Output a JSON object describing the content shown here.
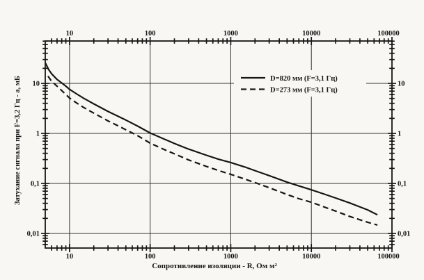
{
  "colors": {
    "background": "#f8f7f4",
    "ink": "#161616",
    "grid": "#34332f"
  },
  "chart_data": {
    "type": "line",
    "title": "",
    "xlabel": "Сопротивление изоляции - R, Ом м²",
    "ylabel": "Затухание сигнала при  F=3,2 Гц - а, мБ",
    "x_scale": "log",
    "y_scale": "log",
    "x_range": [
      5,
      100000
    ],
    "y_range": [
      0.0051,
      70.5
    ],
    "grid": true,
    "x_major_ticks": [
      10,
      100,
      1000,
      10000,
      100000
    ],
    "x_major_labels": [
      "10",
      "100",
      "1000",
      "10000",
      "100000"
    ],
    "y_major_ticks": [
      10,
      1,
      0.1,
      0.01
    ],
    "y_major_labels": [
      "10",
      "1",
      "0,1",
      "0,01"
    ],
    "tick_label_sides": [
      "top",
      "bottom",
      "left",
      "right"
    ],
    "legend_position": "inside-top-right",
    "series": [
      {
        "name": "D=820 мм (F=3,1 Гц)",
        "line_style": "solid",
        "points": [
          [
            5,
            26
          ],
          [
            5.5,
            19
          ],
          [
            6,
            15.5
          ],
          [
            7,
            12
          ],
          [
            8,
            10.2
          ],
          [
            9,
            8.8
          ],
          [
            10,
            7.6
          ],
          [
            12,
            6.3
          ],
          [
            15,
            5.05
          ],
          [
            20,
            3.9
          ],
          [
            30,
            2.75
          ],
          [
            40,
            2.2
          ],
          [
            50,
            1.85
          ],
          [
            70,
            1.4
          ],
          [
            100,
            1.02
          ],
          [
            150,
            0.77
          ],
          [
            200,
            0.63
          ],
          [
            300,
            0.485
          ],
          [
            500,
            0.365
          ],
          [
            700,
            0.305
          ],
          [
            1000,
            0.262
          ],
          [
            1500,
            0.213
          ],
          [
            2000,
            0.18
          ],
          [
            3000,
            0.143
          ],
          [
            5000,
            0.106
          ],
          [
            7000,
            0.089
          ],
          [
            10000,
            0.0745
          ],
          [
            15000,
            0.06
          ],
          [
            20000,
            0.051
          ],
          [
            30000,
            0.0405
          ],
          [
            50000,
            0.0295
          ],
          [
            66000,
            0.0235
          ]
        ]
      },
      {
        "name": "D=273 мм (F=3,1 Гц)",
        "line_style": "dashed",
        "points": [
          [
            5.4,
            14
          ],
          [
            6,
            11
          ],
          [
            7,
            8.8
          ],
          [
            8,
            7.2
          ],
          [
            9,
            6.0
          ],
          [
            10,
            5.1
          ],
          [
            12,
            4.15
          ],
          [
            15,
            3.3
          ],
          [
            20,
            2.55
          ],
          [
            30,
            1.78
          ],
          [
            40,
            1.42
          ],
          [
            50,
            1.18
          ],
          [
            60,
            1.02
          ],
          [
            70,
            0.9
          ],
          [
            100,
            0.64
          ],
          [
            150,
            0.475
          ],
          [
            200,
            0.39
          ],
          [
            300,
            0.295
          ],
          [
            500,
            0.218
          ],
          [
            700,
            0.182
          ],
          [
            1000,
            0.152
          ],
          [
            1500,
            0.122
          ],
          [
            2000,
            0.104
          ],
          [
            3000,
            0.082
          ],
          [
            5000,
            0.06
          ],
          [
            7000,
            0.0495
          ],
          [
            10000,
            0.042
          ],
          [
            15000,
            0.033
          ],
          [
            20000,
            0.028
          ],
          [
            30000,
            0.0218
          ],
          [
            50000,
            0.0167
          ],
          [
            66000,
            0.0147
          ]
        ]
      }
    ]
  }
}
